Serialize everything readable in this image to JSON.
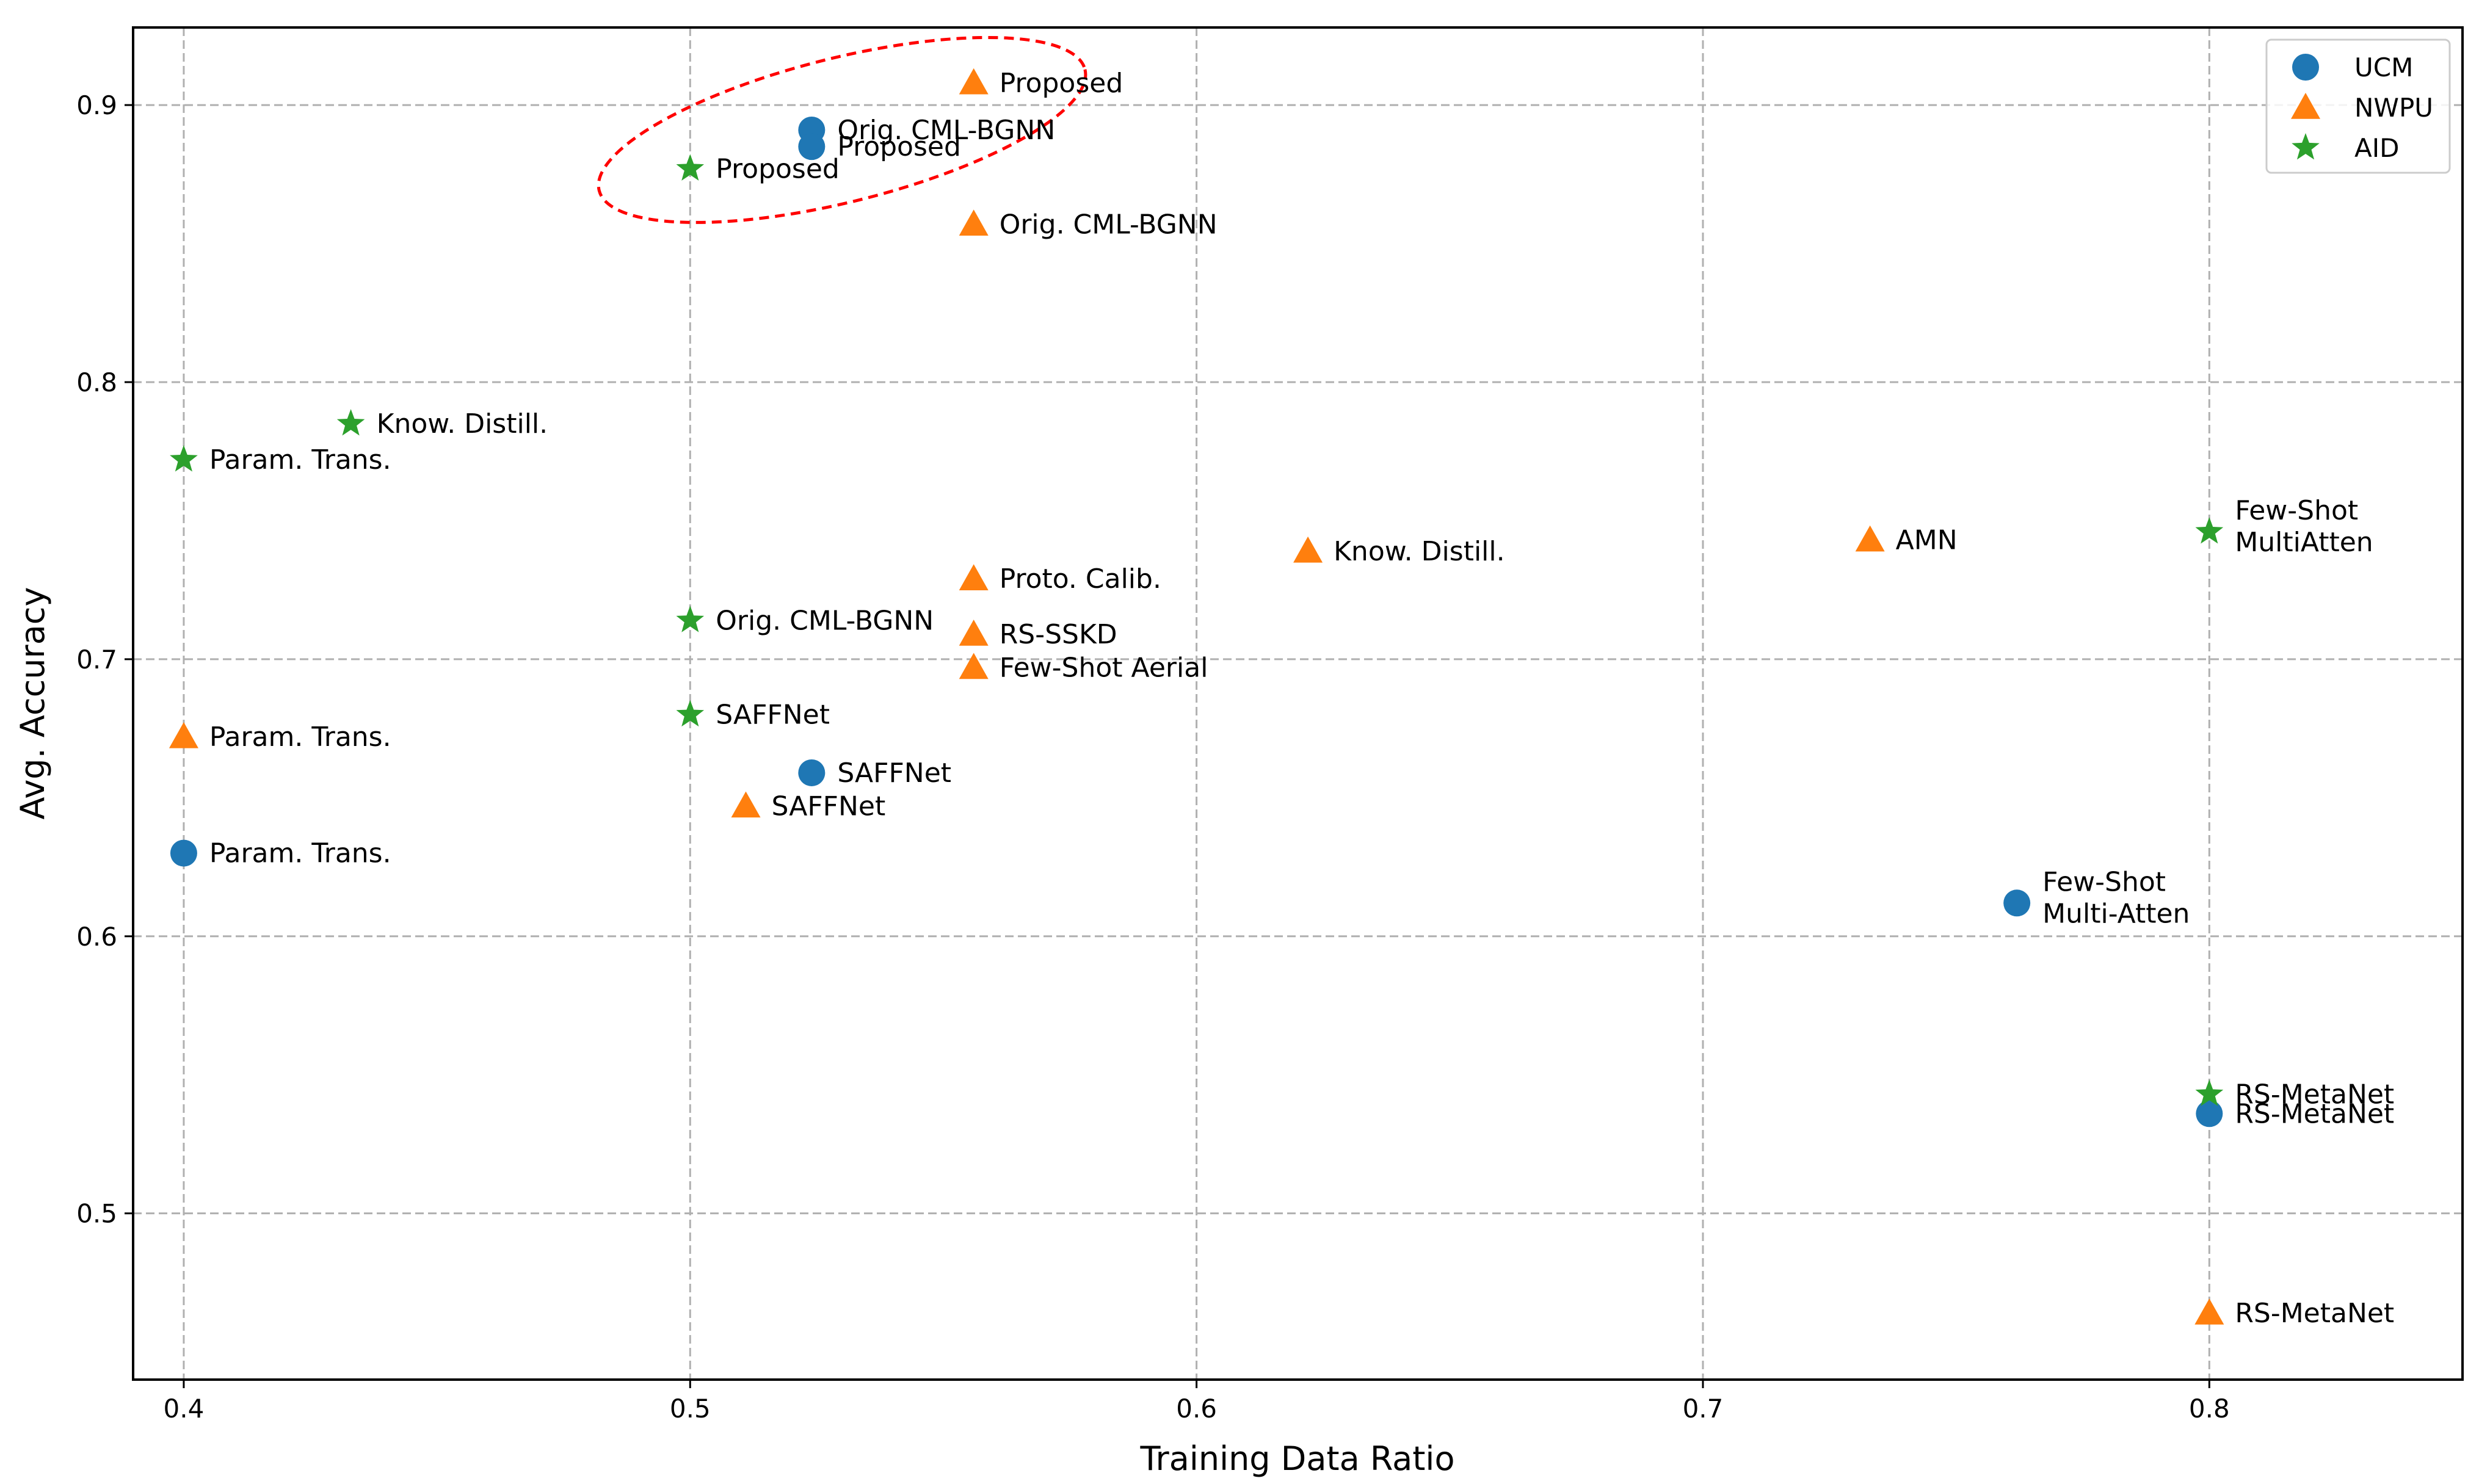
{
  "chart_data": {
    "type": "scatter",
    "title": "",
    "xlabel": "Training Data Ratio",
    "ylabel": "Avg. Accuracy",
    "xlim": [
      0.39,
      0.85
    ],
    "ylim": [
      0.44,
      0.928
    ],
    "grid": true,
    "legend_position": "top-right",
    "xticks": [
      0.4,
      0.5,
      0.6,
      0.7,
      0.8
    ],
    "yticks": [
      0.5,
      0.6,
      0.7,
      0.8,
      0.9
    ],
    "series": [
      {
        "name": "UCM",
        "marker": "circle",
        "color": "#1f77b4",
        "points": [
          {
            "x": 0.524,
            "y": 0.891,
            "label": "Orig. CML-BGNN"
          },
          {
            "x": 0.524,
            "y": 0.885,
            "label": "Proposed"
          },
          {
            "x": 0.524,
            "y": 0.659,
            "label": "SAFFNet"
          },
          {
            "x": 0.4,
            "y": 0.63,
            "label": "Param. Trans."
          },
          {
            "x": 0.762,
            "y": 0.612,
            "label": "Few-Shot\nMulti-Atten"
          },
          {
            "x": 0.8,
            "y": 0.536,
            "label": "RS-MetaNet"
          }
        ]
      },
      {
        "name": "NWPU",
        "marker": "triangle",
        "color": "#ff7f0e",
        "points": [
          {
            "x": 0.556,
            "y": 0.908,
            "label": "Proposed"
          },
          {
            "x": 0.556,
            "y": 0.857,
            "label": "Orig. CML-BGNN"
          },
          {
            "x": 0.556,
            "y": 0.729,
            "label": "Proto. Calib."
          },
          {
            "x": 0.556,
            "y": 0.709,
            "label": "RS-SSKD"
          },
          {
            "x": 0.556,
            "y": 0.697,
            "label": "Few-Shot Aerial"
          },
          {
            "x": 0.4,
            "y": 0.672,
            "label": "Param. Trans."
          },
          {
            "x": 0.511,
            "y": 0.647,
            "label": "SAFFNet"
          },
          {
            "x": 0.622,
            "y": 0.739,
            "label": "Know. Distill."
          },
          {
            "x": 0.733,
            "y": 0.743,
            "label": "AMN"
          },
          {
            "x": 0.8,
            "y": 0.464,
            "label": "RS-MetaNet"
          }
        ]
      },
      {
        "name": "AID",
        "marker": "star",
        "color": "#2ca02c",
        "points": [
          {
            "x": 0.5,
            "y": 0.877,
            "label": "Proposed"
          },
          {
            "x": 0.433,
            "y": 0.785,
            "label": "Know. Distill."
          },
          {
            "x": 0.4,
            "y": 0.772,
            "label": "Param. Trans."
          },
          {
            "x": 0.5,
            "y": 0.714,
            "label": "Orig. CML-BGNN"
          },
          {
            "x": 0.5,
            "y": 0.68,
            "label": "SAFFNet"
          },
          {
            "x": 0.8,
            "y": 0.746,
            "label": "Few-Shot\nMultiAtten"
          },
          {
            "x": 0.8,
            "y": 0.543,
            "label": "RS-MetaNet"
          }
        ]
      }
    ],
    "annotations": [
      {
        "type": "dashed-ellipse",
        "color": "#ff0000",
        "center": {
          "x": 0.53,
          "y": 0.891
        },
        "note": "highlights Proposed results"
      }
    ]
  }
}
